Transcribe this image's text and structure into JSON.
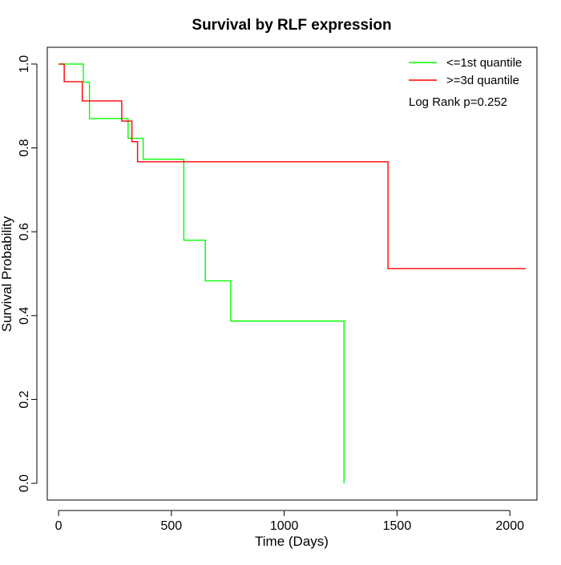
{
  "chart_data": {
    "type": "line",
    "title": "Survival by RLF expression",
    "xlabel": "Time (Days)",
    "ylabel": "Survival Probability",
    "xlim": [
      -50,
      2120
    ],
    "ylim": [
      -0.04,
      1.04
    ],
    "x_ticks": [
      0,
      500,
      1000,
      1500,
      2000
    ],
    "y_ticks": [
      0.0,
      0.2,
      0.4,
      0.6,
      0.8,
      1.0
    ],
    "x_tick_labels": [
      "0",
      "500",
      "1000",
      "1500",
      "2000"
    ],
    "y_tick_labels": [
      "0.0",
      "0.2",
      "0.4",
      "0.6",
      "0.8",
      "1.0"
    ],
    "grid": false,
    "legend_position": "top-right",
    "annotation": "Log Rank p=0.252",
    "series": [
      {
        "name": "<=1st quantile",
        "color": "#00ff00",
        "x": [
          0,
          110,
          137,
          295,
          308,
          375,
          548,
          555,
          650,
          763,
          1265,
          1265
        ],
        "y": [
          1.0,
          0.957,
          0.87,
          0.87,
          0.823,
          0.773,
          0.773,
          0.58,
          0.483,
          0.387,
          0.387,
          0.0
        ]
      },
      {
        "name": ">=3d quantile",
        "color": "#ff0000",
        "x": [
          0,
          25,
          105,
          280,
          325,
          350,
          1460,
          2070
        ],
        "y": [
          1.0,
          0.958,
          0.912,
          0.864,
          0.815,
          0.767,
          0.512,
          0.512
        ]
      }
    ]
  }
}
